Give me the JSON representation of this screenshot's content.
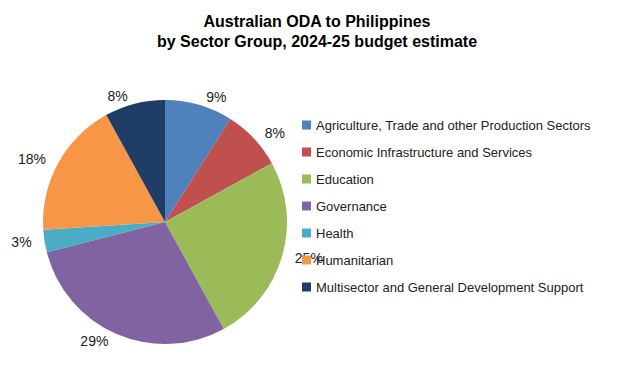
{
  "chart_data": {
    "type": "pie",
    "title": "Australian ODA to Philippines\nby Sector Group, 2024-25 budget estimate",
    "categories": [
      "Agriculture, Trade and other Production Sectors",
      "Economic Infrastructure and Services",
      "Education",
      "Governance",
      "Health",
      "Humanitarian",
      "Multisector and General Development Support"
    ],
    "values": [
      9,
      8,
      25,
      29,
      3,
      18,
      8
    ],
    "value_labels": [
      "9%",
      "8%",
      "25%",
      "29%",
      "3%",
      "18%",
      "8%"
    ],
    "colors": [
      "#4f81bd",
      "#c0504d",
      "#9bbb59",
      "#8064a2",
      "#4bacc6",
      "#f79646",
      "#1f3d66"
    ],
    "data_labels": true,
    "legend": "right"
  }
}
